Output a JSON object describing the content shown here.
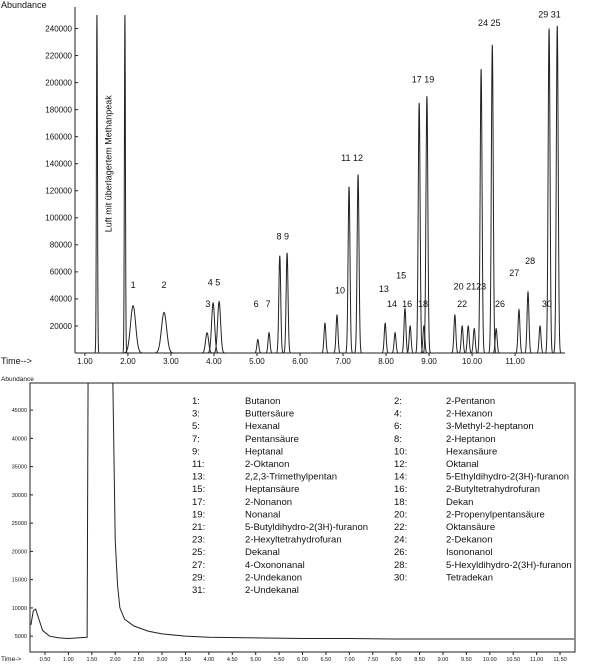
{
  "chart_data": [
    {
      "type": "peaks",
      "y_label": "Abundance",
      "x_label": "Time-->",
      "xlim": [
        0.77,
        12.16
      ],
      "ylim": [
        0,
        250000
      ],
      "yticks": [
        20000,
        40000,
        60000,
        80000,
        100000,
        120000,
        140000,
        160000,
        180000,
        200000,
        220000,
        240000
      ],
      "xticks": [
        {
          "value": 1,
          "label": "1.00"
        },
        {
          "value": 2,
          "label": "2.00"
        },
        {
          "value": 3,
          "label": "3.00"
        },
        {
          "value": 4,
          "label": "4.00"
        },
        {
          "value": 5,
          "label": "5.00"
        },
        {
          "value": 6,
          "label": "6.00"
        },
        {
          "value": 7,
          "label": "7.00"
        },
        {
          "value": 8,
          "label": "8.00"
        },
        {
          "value": 9,
          "label": "9.00"
        },
        {
          "value": 10,
          "label": "10.00"
        },
        {
          "value": 11,
          "label": "11.00"
        }
      ],
      "color": "#222222",
      "peaks": [
        {
          "time": 1.28,
          "height": 250000
        },
        {
          "time": 1.93,
          "height": 250000
        },
        {
          "time": 2.12,
          "height": 35000
        },
        {
          "time": 2.84,
          "height": 30000
        },
        {
          "time": 3.84,
          "height": 15000
        },
        {
          "time": 3.98,
          "height": 37000
        },
        {
          "time": 4.12,
          "height": 38000
        },
        {
          "time": 5.02,
          "height": 10000
        },
        {
          "time": 5.28,
          "height": 15000
        },
        {
          "time": 5.53,
          "height": 72000
        },
        {
          "time": 5.7,
          "height": 74000
        },
        {
          "time": 6.58,
          "height": 22000
        },
        {
          "time": 6.86,
          "height": 28000
        },
        {
          "time": 7.14,
          "height": 123000
        },
        {
          "time": 7.35,
          "height": 132000
        },
        {
          "time": 7.98,
          "height": 22000
        },
        {
          "time": 8.21,
          "height": 15000
        },
        {
          "time": 8.44,
          "height": 33000
        },
        {
          "time": 8.56,
          "height": 20000
        },
        {
          "time": 8.77,
          "height": 185000
        },
        {
          "time": 8.88,
          "height": 20000
        },
        {
          "time": 8.95,
          "height": 190000
        },
        {
          "time": 9.6,
          "height": 28000
        },
        {
          "time": 9.77,
          "height": 20000
        },
        {
          "time": 9.91,
          "height": 20000
        },
        {
          "time": 10.05,
          "height": 18000
        },
        {
          "time": 10.21,
          "height": 210000
        },
        {
          "time": 10.47,
          "height": 228000
        },
        {
          "time": 10.56,
          "height": 18000
        },
        {
          "time": 11.09,
          "height": 32000
        },
        {
          "time": 11.3,
          "height": 45000
        },
        {
          "time": 11.58,
          "height": 20000
        },
        {
          "time": 11.79,
          "height": 240000
        },
        {
          "time": 11.98,
          "height": 242000
        }
      ],
      "vertical_note": {
        "text": "Luft mit überlagertem Methanpeak",
        "x": 1.62,
        "y": 140000
      },
      "annotations": [
        {
          "text": "1",
          "x": 2.12,
          "y": 48000
        },
        {
          "text": "2",
          "x": 2.84,
          "y": 48000
        },
        {
          "text": "4 5",
          "x": 4.0,
          "y": 50000
        },
        {
          "text": "3",
          "x": 3.86,
          "y": 34000
        },
        {
          "text": "6",
          "x": 4.98,
          "y": 34000
        },
        {
          "text": "7",
          "x": 5.26,
          "y": 34000
        },
        {
          "text": "8 9",
          "x": 5.6,
          "y": 84000
        },
        {
          "text": "10",
          "x": 6.93,
          "y": 44000
        },
        {
          "text": "11 12",
          "x": 7.21,
          "y": 142000
        },
        {
          "text": "13",
          "x": 7.95,
          "y": 45000
        },
        {
          "text": "14",
          "x": 8.14,
          "y": 34000
        },
        {
          "text": "15",
          "x": 8.35,
          "y": 55000
        },
        {
          "text": "16",
          "x": 8.49,
          "y": 34000
        },
        {
          "text": "18",
          "x": 8.86,
          "y": 34000
        },
        {
          "text": "17 19",
          "x": 8.86,
          "y": 200000
        },
        {
          "text": "20 2123",
          "x": 9.95,
          "y": 47000
        },
        {
          "text": "22",
          "x": 9.77,
          "y": 34000
        },
        {
          "text": "26",
          "x": 10.65,
          "y": 34000
        },
        {
          "text": "24 25",
          "x": 10.4,
          "y": 242000
        },
        {
          "text": "27",
          "x": 10.98,
          "y": 57000
        },
        {
          "text": "28",
          "x": 11.35,
          "y": 66000
        },
        {
          "text": "30",
          "x": 11.74,
          "y": 34000
        },
        {
          "text": "29 31",
          "x": 11.8,
          "y": 248000
        }
      ]
    },
    {
      "type": "line",
      "y_label": "Abundance",
      "x_label": "Time->",
      "xlim": [
        0.18,
        11.82
      ],
      "ylim": [
        2200,
        49800
      ],
      "yticks": [
        5000,
        10000,
        15000,
        20000,
        25000,
        30000,
        35000,
        40000,
        45000
      ],
      "xticks": [
        {
          "value": 0.5,
          "label": "0.50"
        },
        {
          "value": 1,
          "label": "1.00"
        },
        {
          "value": 1.5,
          "label": "1.50"
        },
        {
          "value": 2,
          "label": "2.00"
        },
        {
          "value": 2.5,
          "label": "2.50"
        },
        {
          "value": 3,
          "label": "3.00"
        },
        {
          "value": 3.5,
          "label": "3.50"
        },
        {
          "value": 4,
          "label": "4.00"
        },
        {
          "value": 4.5,
          "label": "4.50"
        },
        {
          "value": 5,
          "label": "5.00"
        },
        {
          "value": 5.5,
          "label": "5.50"
        },
        {
          "value": 6,
          "label": "6.00"
        },
        {
          "value": 6.5,
          "label": "6.50"
        },
        {
          "value": 7,
          "label": "7.00"
        },
        {
          "value": 7.5,
          "label": "7.50"
        },
        {
          "value": 8,
          "label": "8.00"
        },
        {
          "value": 8.5,
          "label": "8.50"
        },
        {
          "value": 9,
          "label": "9.00"
        },
        {
          "value": 9.5,
          "label": "9.50"
        },
        {
          "value": 10,
          "label": "10.00"
        },
        {
          "value": 10.5,
          "label": "10.50"
        },
        {
          "value": 11,
          "label": "11.00"
        },
        {
          "value": 11.5,
          "label": "11.50"
        }
      ],
      "color": "#222222",
      "x": [
        0.2,
        0.25,
        0.3,
        0.35,
        0.45,
        0.6,
        0.8,
        1.0,
        1.2,
        1.4,
        1.42,
        1.95,
        2.0,
        2.05,
        2.1,
        2.2,
        2.4,
        2.7,
        3.0,
        3.5,
        4.0,
        5.0,
        6.0,
        7.0,
        8.0,
        9.0,
        10.0,
        11.0,
        11.8
      ],
      "values": [
        7000,
        9500,
        9800,
        8500,
        6000,
        5000,
        4700,
        4600,
        4700,
        4800,
        49800,
        49800,
        22000,
        14000,
        10000,
        8000,
        6800,
        5900,
        5400,
        5000,
        4800,
        4700,
        4600,
        4600,
        4500,
        4500,
        4500,
        4500,
        4500
      ]
    },
    {
      "type": "table",
      "rows": [
        [
          "1:",
          "Butanon",
          "2:",
          "2-Pentanon"
        ],
        [
          "3:",
          "Buttersäure",
          "4:",
          "2-Hexanon"
        ],
        [
          "5:",
          "Hexanal",
          "6:",
          "3-Methyl-2-heptanon"
        ],
        [
          "7:",
          "Pentansäure",
          "8:",
          "2-Heptanon"
        ],
        [
          "9:",
          "Heptanal",
          "10:",
          "Hexansäure"
        ],
        [
          "11:",
          "2-Oktanon",
          "12:",
          "Oktanal"
        ],
        [
          "13:",
          "2,2,3-Trimethylpentan",
          "14:",
          "5-Ethyldihydro-2(3H)-furanon"
        ],
        [
          "15:",
          "Heptansäure",
          "16:",
          "2-Butyltetrahydrofuran"
        ],
        [
          "17:",
          "2-Nonanon",
          "18:",
          "Dekan"
        ],
        [
          "19:",
          "Nonanal",
          "20:",
          "2-Propenylpentansäure"
        ],
        [
          "21:",
          "5-Butyldihydro-2(3H)-furanon",
          "22:",
          "Oktansäure"
        ],
        [
          "23:",
          "2-Hexyltetrahydrofuran",
          "24:",
          "2-Dekanon"
        ],
        [
          "25:",
          "Dekanal",
          "26:",
          "Isononanol"
        ],
        [
          "27:",
          "4-Oxononanal",
          "28:",
          "5-Hexyldihydro-2(3H)-furanon"
        ],
        [
          "29:",
          "2-Undekanon",
          "30:",
          "Tetradekan"
        ],
        [
          "31:",
          "2-Undekanal"
        ]
      ]
    }
  ]
}
